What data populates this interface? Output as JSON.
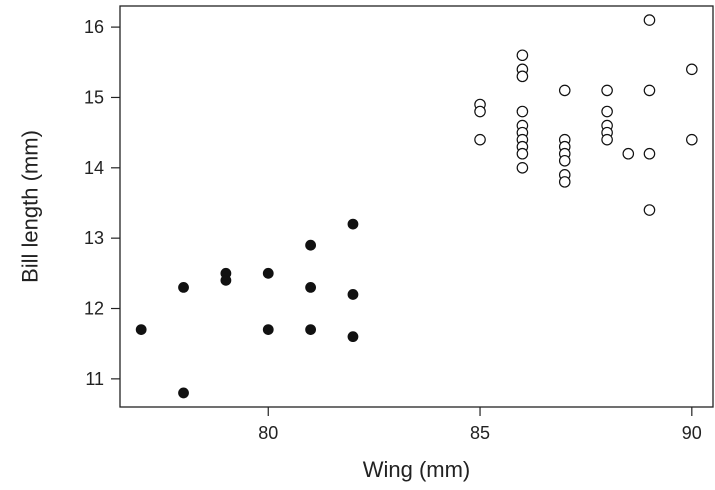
{
  "chart_data": {
    "type": "scatter",
    "xlabel": "Wing (mm)",
    "ylabel": "Bill length (mm)",
    "xlim": [
      76.5,
      90.5
    ],
    "ylim": [
      10.6,
      16.3
    ],
    "xticks": [
      80,
      85,
      90
    ],
    "yticks": [
      11,
      12,
      13,
      14,
      15,
      16
    ],
    "grid": false,
    "series": [
      {
        "marker": "filled-circle",
        "color": "#111111",
        "points": [
          [
            77,
            11.7
          ],
          [
            78,
            12.3
          ],
          [
            78,
            10.8
          ],
          [
            79,
            12.5
          ],
          [
            79,
            12.4
          ],
          [
            80,
            12.5
          ],
          [
            80,
            11.7
          ],
          [
            81,
            12.9
          ],
          [
            81,
            12.3
          ],
          [
            81,
            11.7
          ],
          [
            82,
            13.2
          ],
          [
            82,
            12.2
          ],
          [
            82,
            11.6
          ]
        ]
      },
      {
        "marker": "open-circle",
        "color": "#111111",
        "points": [
          [
            85,
            14.9
          ],
          [
            85,
            14.8
          ],
          [
            85,
            14.4
          ],
          [
            86,
            15.6
          ],
          [
            86,
            15.4
          ],
          [
            86,
            15.3
          ],
          [
            86,
            14.8
          ],
          [
            86,
            14.6
          ],
          [
            86,
            14.5
          ],
          [
            86,
            14.4
          ],
          [
            86,
            14.3
          ],
          [
            86,
            14.2
          ],
          [
            86,
            14.0
          ],
          [
            87,
            15.1
          ],
          [
            87,
            14.4
          ],
          [
            87,
            14.3
          ],
          [
            87,
            14.2
          ],
          [
            87,
            14.1
          ],
          [
            87,
            13.9
          ],
          [
            87,
            13.8
          ],
          [
            88,
            15.1
          ],
          [
            88,
            14.8
          ],
          [
            88,
            14.6
          ],
          [
            88,
            14.5
          ],
          [
            88,
            14.4
          ],
          [
            88.5,
            14.2
          ],
          [
            89,
            16.1
          ],
          [
            89,
            15.1
          ],
          [
            89,
            14.2
          ],
          [
            89,
            13.4
          ],
          [
            90,
            15.4
          ],
          [
            90,
            14.4
          ]
        ]
      }
    ]
  }
}
